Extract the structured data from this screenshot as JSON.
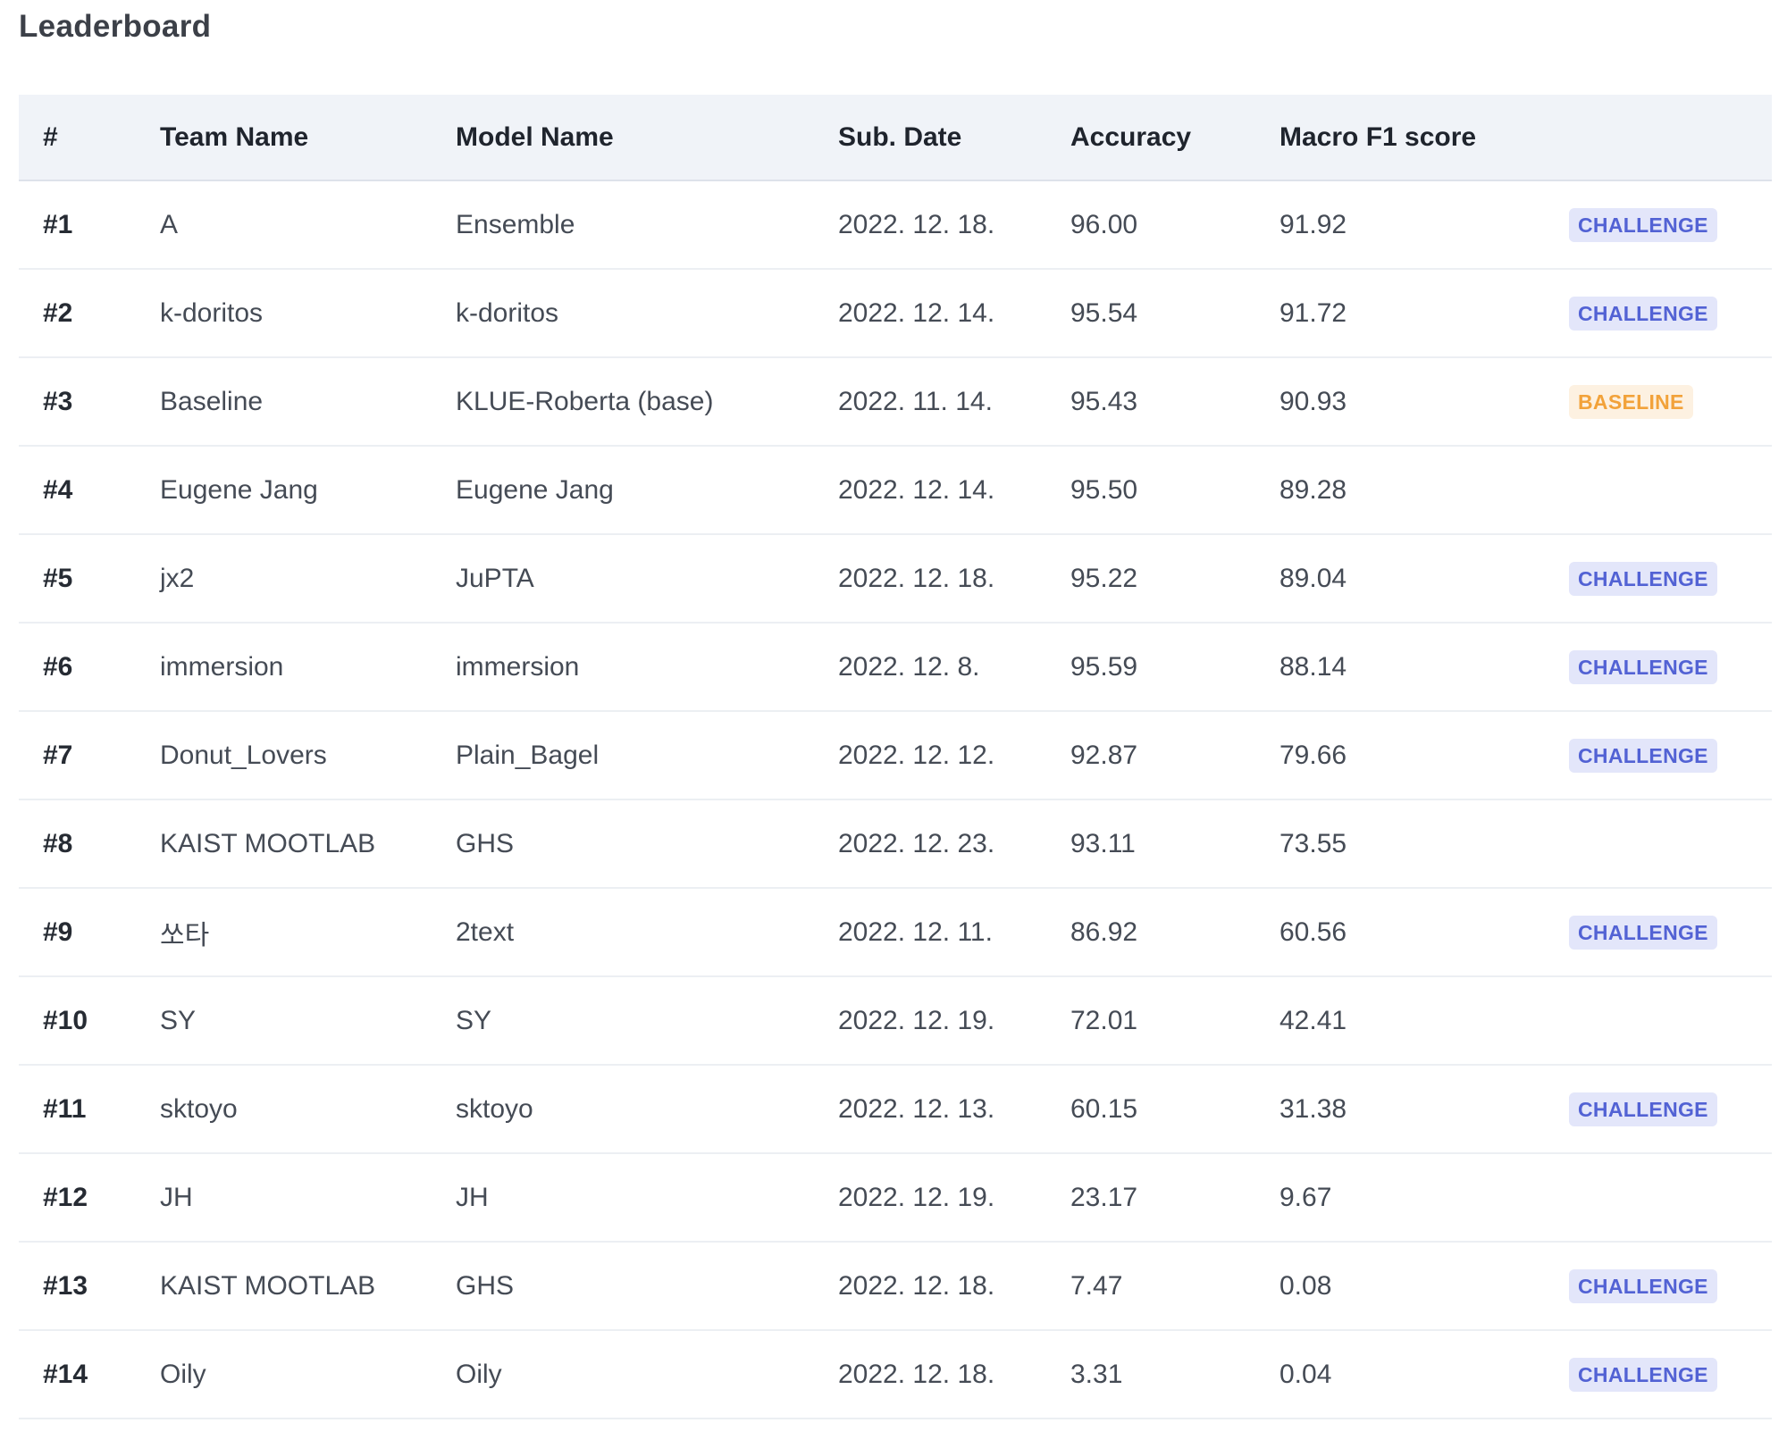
{
  "page": {
    "title": "Leaderboard"
  },
  "colors": {
    "header_background": "#f0f3f8",
    "challenge_badge_background": "#e3e6fa",
    "challenge_badge_text": "#5262d4",
    "baseline_badge_background": "#fdf1e1",
    "baseline_badge_text": "#f2a23a"
  },
  "table": {
    "columns": [
      "#",
      "Team Name",
      "Model Name",
      "Sub. Date",
      "Accuracy",
      "Macro F1 score"
    ],
    "rows": [
      {
        "rank": "#1",
        "team": "A",
        "model": "Ensemble",
        "date": "2022. 12. 18.",
        "accuracy": "96.00",
        "f1": "91.92",
        "badge": "CHALLENGE"
      },
      {
        "rank": "#2",
        "team": "k-doritos",
        "model": "k-doritos",
        "date": "2022. 12. 14.",
        "accuracy": "95.54",
        "f1": "91.72",
        "badge": "CHALLENGE"
      },
      {
        "rank": "#3",
        "team": "Baseline",
        "model": "KLUE-Roberta (base)",
        "date": "2022. 11. 14.",
        "accuracy": "95.43",
        "f1": "90.93",
        "badge": "BASELINE"
      },
      {
        "rank": "#4",
        "team": "Eugene Jang",
        "model": "Eugene Jang",
        "date": "2022. 12. 14.",
        "accuracy": "95.50",
        "f1": "89.28",
        "badge": ""
      },
      {
        "rank": "#5",
        "team": "jx2",
        "model": "JuPTA",
        "date": "2022. 12. 18.",
        "accuracy": "95.22",
        "f1": "89.04",
        "badge": "CHALLENGE"
      },
      {
        "rank": "#6",
        "team": "immersion",
        "model": "immersion",
        "date": "2022. 12. 8.",
        "accuracy": "95.59",
        "f1": "88.14",
        "badge": "CHALLENGE"
      },
      {
        "rank": "#7",
        "team": "Donut_Lovers",
        "model": "Plain_Bagel",
        "date": "2022. 12. 12.",
        "accuracy": "92.87",
        "f1": "79.66",
        "badge": "CHALLENGE"
      },
      {
        "rank": "#8",
        "team": "KAIST MOOTLAB",
        "model": "GHS",
        "date": "2022. 12. 23.",
        "accuracy": "93.11",
        "f1": "73.55",
        "badge": ""
      },
      {
        "rank": "#9",
        "team": "쏘타",
        "model": "2text",
        "date": "2022. 12. 11.",
        "accuracy": "86.92",
        "f1": "60.56",
        "badge": "CHALLENGE"
      },
      {
        "rank": "#10",
        "team": "SY",
        "model": "SY",
        "date": "2022. 12. 19.",
        "accuracy": "72.01",
        "f1": "42.41",
        "badge": ""
      },
      {
        "rank": "#11",
        "team": "sktoyo",
        "model": "sktoyo",
        "date": "2022. 12. 13.",
        "accuracy": "60.15",
        "f1": "31.38",
        "badge": "CHALLENGE"
      },
      {
        "rank": "#12",
        "team": "JH",
        "model": "JH",
        "date": "2022. 12. 19.",
        "accuracy": "23.17",
        "f1": "9.67",
        "badge": ""
      },
      {
        "rank": "#13",
        "team": "KAIST MOOTLAB",
        "model": "GHS",
        "date": "2022. 12. 18.",
        "accuracy": "7.47",
        "f1": "0.08",
        "badge": "CHALLENGE"
      },
      {
        "rank": "#14",
        "team": "Oily",
        "model": "Oily",
        "date": "2022. 12. 18.",
        "accuracy": "3.31",
        "f1": "0.04",
        "badge": "CHALLENGE"
      }
    ]
  }
}
